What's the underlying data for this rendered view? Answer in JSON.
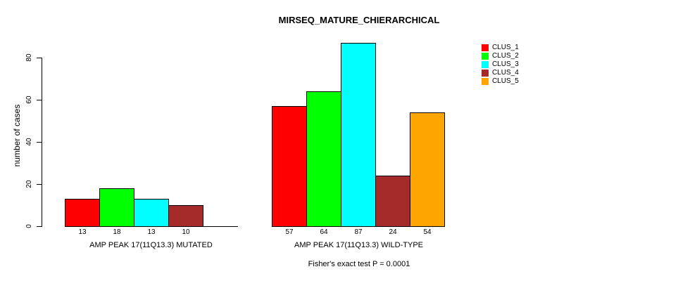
{
  "chart_data": {
    "type": "bar",
    "title": "MIRSEQ_MATURE_CHIERARCHICAL",
    "ylabel": "number of cases",
    "xlabel": "",
    "caption": "Fisher's exact test P = 0.0001",
    "categories": [
      "AMP PEAK 17(11Q13.3) MUTATED",
      "AMP PEAK 17(11Q13.3) WILD-TYPE"
    ],
    "series": [
      {
        "name": "CLUS_1",
        "color": "#FF0000",
        "values": [
          13,
          57
        ]
      },
      {
        "name": "CLUS_2",
        "color": "#00FF00",
        "values": [
          18,
          64
        ]
      },
      {
        "name": "CLUS_3",
        "color": "#00FFFF",
        "values": [
          13,
          87
        ]
      },
      {
        "name": "CLUS_4",
        "color": "#A52A2A",
        "values": [
          10,
          24
        ]
      },
      {
        "name": "CLUS_5",
        "color": "#FFA500",
        "values": [
          0,
          54
        ]
      }
    ],
    "bar_value_labels_shown": true,
    "zero_bars_hidden": true,
    "yticks": [
      0,
      20,
      40,
      60,
      80
    ],
    "ylim": [
      0,
      87
    ],
    "grid": false,
    "legend_position": "right-outside",
    "axis_color": "#000000",
    "background_color": "#FFFFFF"
  }
}
